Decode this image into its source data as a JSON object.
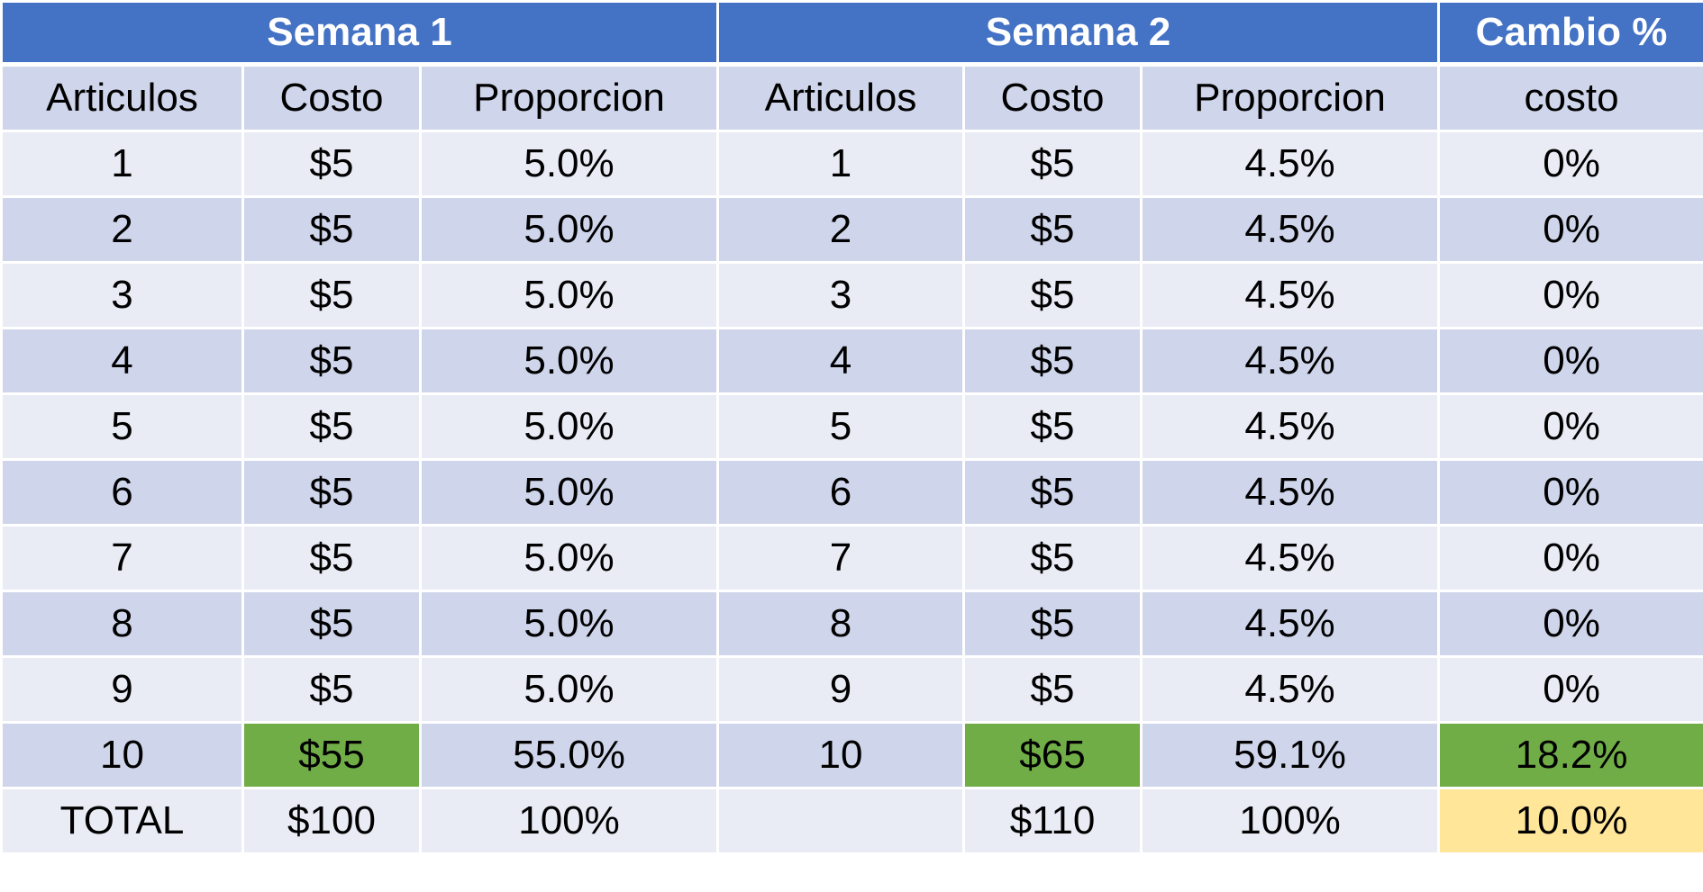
{
  "colors": {
    "header_blue": "#4472c4",
    "row_light": "#e9ebf5",
    "row_dark": "#cfd5ea",
    "highlight_green": "#70ad47",
    "highlight_yellow": "#ffe699"
  },
  "groups": {
    "week1": "Semana 1",
    "week2": "Semana 2",
    "change": "Cambio %"
  },
  "columns": {
    "w1_items": "Articulos",
    "w1_cost": "Costo",
    "w1_share": "Proporcion",
    "w2_items": "Articulos",
    "w2_cost": "Costo",
    "w2_share": "Proporcion",
    "change_cost": "costo"
  },
  "rows": [
    {
      "w1_items": "1",
      "w1_cost": "$5",
      "w1_share": "5.0%",
      "w2_items": "1",
      "w2_cost": "$5",
      "w2_share": "4.5%",
      "change": "0%"
    },
    {
      "w1_items": "2",
      "w1_cost": "$5",
      "w1_share": "5.0%",
      "w2_items": "2",
      "w2_cost": "$5",
      "w2_share": "4.5%",
      "change": "0%"
    },
    {
      "w1_items": "3",
      "w1_cost": "$5",
      "w1_share": "5.0%",
      "w2_items": "3",
      "w2_cost": "$5",
      "w2_share": "4.5%",
      "change": "0%"
    },
    {
      "w1_items": "4",
      "w1_cost": "$5",
      "w1_share": "5.0%",
      "w2_items": "4",
      "w2_cost": "$5",
      "w2_share": "4.5%",
      "change": "0%"
    },
    {
      "w1_items": "5",
      "w1_cost": "$5",
      "w1_share": "5.0%",
      "w2_items": "5",
      "w2_cost": "$5",
      "w2_share": "4.5%",
      "change": "0%"
    },
    {
      "w1_items": "6",
      "w1_cost": "$5",
      "w1_share": "5.0%",
      "w2_items": "6",
      "w2_cost": "$5",
      "w2_share": "4.5%",
      "change": "0%"
    },
    {
      "w1_items": "7",
      "w1_cost": "$5",
      "w1_share": "5.0%",
      "w2_items": "7",
      "w2_cost": "$5",
      "w2_share": "4.5%",
      "change": "0%"
    },
    {
      "w1_items": "8",
      "w1_cost": "$5",
      "w1_share": "5.0%",
      "w2_items": "8",
      "w2_cost": "$5",
      "w2_share": "4.5%",
      "change": "0%"
    },
    {
      "w1_items": "9",
      "w1_cost": "$5",
      "w1_share": "5.0%",
      "w2_items": "9",
      "w2_cost": "$5",
      "w2_share": "4.5%",
      "change": "0%"
    },
    {
      "w1_items": "10",
      "w1_cost": "$55",
      "w1_share": "55.0%",
      "w2_items": "10",
      "w2_cost": "$65",
      "w2_share": "59.1%",
      "change": "18.2%"
    }
  ],
  "total": {
    "label": "TOTAL",
    "w1_cost": "$100",
    "w1_share": "100%",
    "w2_items": "",
    "w2_cost": "$110",
    "w2_share": "100%",
    "change": "10.0%"
  }
}
